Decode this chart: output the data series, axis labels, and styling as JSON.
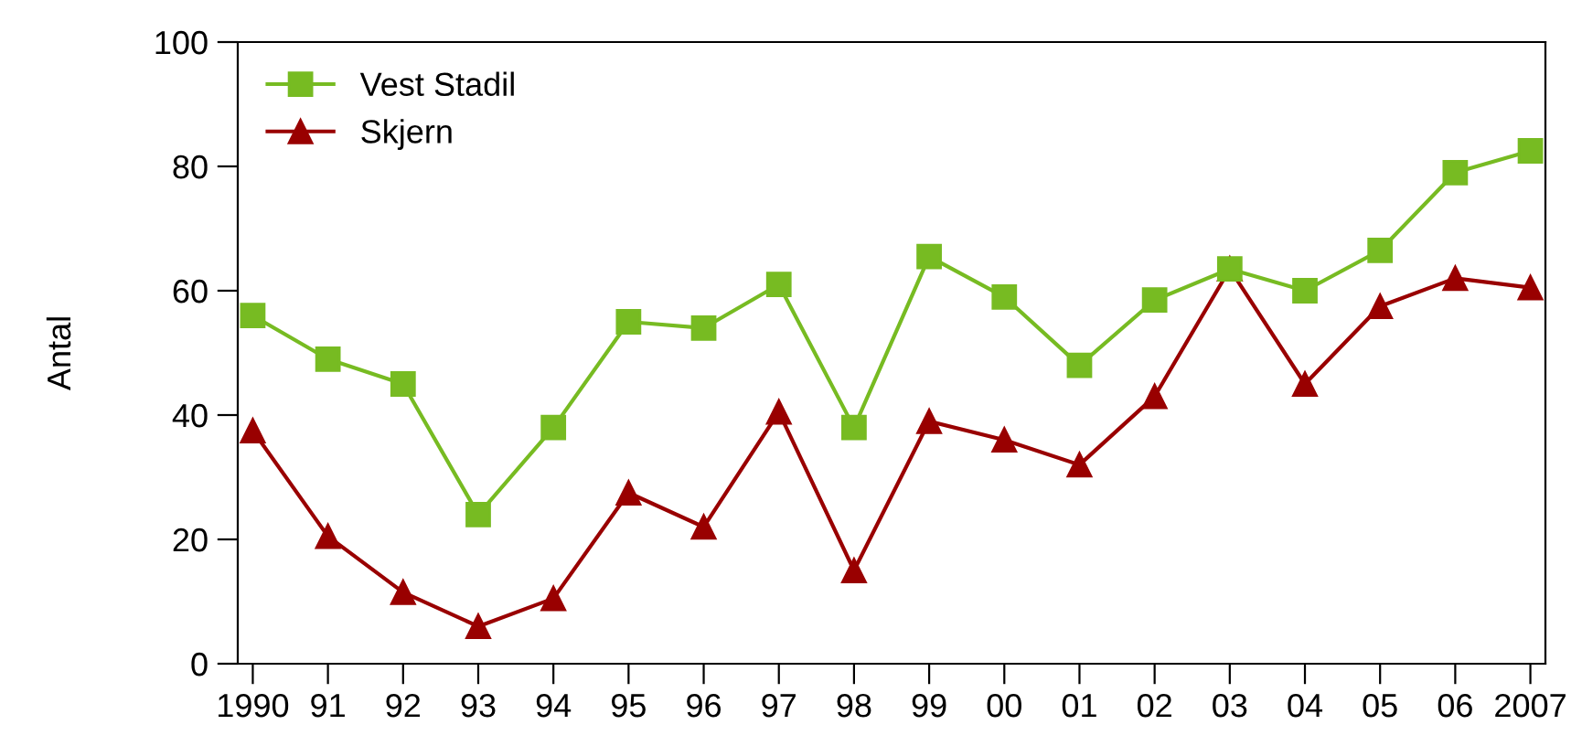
{
  "chart_data": {
    "type": "line",
    "ylabel": "Antal",
    "categories": [
      "1990",
      "91",
      "92",
      "93",
      "94",
      "95",
      "96",
      "97",
      "98",
      "99",
      "00",
      "01",
      "02",
      "03",
      "04",
      "05",
      "06",
      "2007"
    ],
    "series": [
      {
        "name": "Vest Stadil",
        "color": "#77bb22",
        "marker": "square",
        "values": [
          56,
          49,
          45,
          24,
          38,
          55,
          54,
          61,
          38,
          65.5,
          59,
          48,
          58.5,
          63.5,
          60,
          66.5,
          79,
          82.5
        ]
      },
      {
        "name": "Skjern",
        "color": "#990000",
        "marker": "triangle",
        "values": [
          37.5,
          20.5,
          11.5,
          6,
          10.5,
          27.5,
          22,
          40.5,
          15,
          39,
          36,
          32,
          43,
          63.5,
          45,
          57.5,
          62,
          60.5
        ]
      }
    ],
    "ylim": [
      0,
      100
    ],
    "yticks": [
      0,
      20,
      40,
      60,
      80,
      100
    ],
    "grid": false,
    "legend": "top left",
    "line_style": "solid"
  }
}
